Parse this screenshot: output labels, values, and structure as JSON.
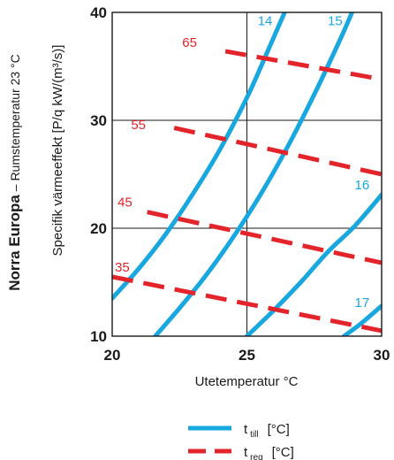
{
  "chart_data": {
    "type": "line",
    "xlabel": "Utetemperatur °C",
    "ylabel": "Specifik värmeeffekt  [P/q kW/(m³/s)]",
    "side_title": {
      "bold": "Norra Europa",
      "rest": " – Rumstemperatur 23 °C"
    },
    "xlim": [
      20,
      30
    ],
    "ylim": [
      10,
      40
    ],
    "xticks": [
      "20",
      "25",
      "30"
    ],
    "yticks": [
      "10",
      "20",
      "30",
      "40"
    ],
    "grid": true,
    "legend_position": "bottom",
    "series": [
      {
        "name": "14",
        "group": "t_till",
        "color": "#19a7e0",
        "points": [
          [
            20,
            13.5
          ],
          [
            21,
            16.3
          ],
          [
            22,
            19.5
          ],
          [
            23,
            23.2
          ],
          [
            24,
            27.3
          ],
          [
            25,
            32.1
          ],
          [
            25.7,
            36.0
          ],
          [
            26.4,
            40.0
          ]
        ]
      },
      {
        "name": "15",
        "group": "t_till",
        "color": "#19a7e0",
        "points": [
          [
            21.6,
            10.0
          ],
          [
            22.5,
            12.6
          ],
          [
            23.5,
            15.7
          ],
          [
            24.5,
            19.2
          ],
          [
            25.5,
            23.1
          ],
          [
            26.5,
            27.5
          ],
          [
            27.5,
            32.4
          ],
          [
            28.5,
            37.7
          ],
          [
            28.9,
            40.0
          ]
        ]
      },
      {
        "name": "16",
        "group": "t_till",
        "color": "#19a7e0",
        "points": [
          [
            25.0,
            10.0
          ],
          [
            26.0,
            12.4
          ],
          [
            27.0,
            15.0
          ],
          [
            28.0,
            17.8
          ],
          [
            29.0,
            20.2
          ],
          [
            30.0,
            23.1
          ]
        ]
      },
      {
        "name": "17",
        "group": "t_till",
        "color": "#19a7e0",
        "points": [
          [
            28.6,
            10.0
          ],
          [
            29.2,
            11.1
          ],
          [
            30.0,
            12.8
          ]
        ]
      },
      {
        "name": "65",
        "group": "t_reg",
        "color": "#e3242b",
        "points": [
          [
            24.2,
            36.4
          ],
          [
            30.0,
            33.8
          ]
        ]
      },
      {
        "name": "55",
        "group": "t_reg",
        "color": "#e3242b",
        "points": [
          [
            22.3,
            29.3
          ],
          [
            30.0,
            25.0
          ]
        ]
      },
      {
        "name": "45",
        "group": "t_reg",
        "color": "#e3242b",
        "points": [
          [
            21.3,
            21.5
          ],
          [
            30.0,
            16.8
          ]
        ]
      },
      {
        "name": "35",
        "group": "t_reg",
        "color": "#e3242b",
        "points": [
          [
            20.0,
            15.5
          ],
          [
            30.0,
            10.5
          ]
        ]
      }
    ],
    "curve_labels": [
      {
        "text": "14",
        "x": 25.4,
        "y": 38.8,
        "color": "#19a7e0"
      },
      {
        "text": "15",
        "x": 28.0,
        "y": 38.8,
        "color": "#19a7e0"
      },
      {
        "text": "16",
        "x": 29.0,
        "y": 23.6,
        "color": "#19a7e0"
      },
      {
        "text": "17",
        "x": 29.0,
        "y": 12.7,
        "color": "#19a7e0"
      },
      {
        "text": "65",
        "x": 22.6,
        "y": 36.8,
        "color": "#e3242b"
      },
      {
        "text": "55",
        "x": 20.7,
        "y": 29.2,
        "color": "#e3242b"
      },
      {
        "text": "45",
        "x": 20.2,
        "y": 22.0,
        "color": "#e3242b"
      },
      {
        "text": "35",
        "x": 20.1,
        "y": 16.0,
        "color": "#e3242b"
      }
    ],
    "legend": [
      {
        "main": "t",
        "sub": "till",
        "unit": "[°C]",
        "style": "solid",
        "color": "#19a7e0"
      },
      {
        "main": "t",
        "sub": "reg",
        "unit": "[°C]",
        "style": "dashed",
        "color": "#e3242b"
      }
    ]
  }
}
